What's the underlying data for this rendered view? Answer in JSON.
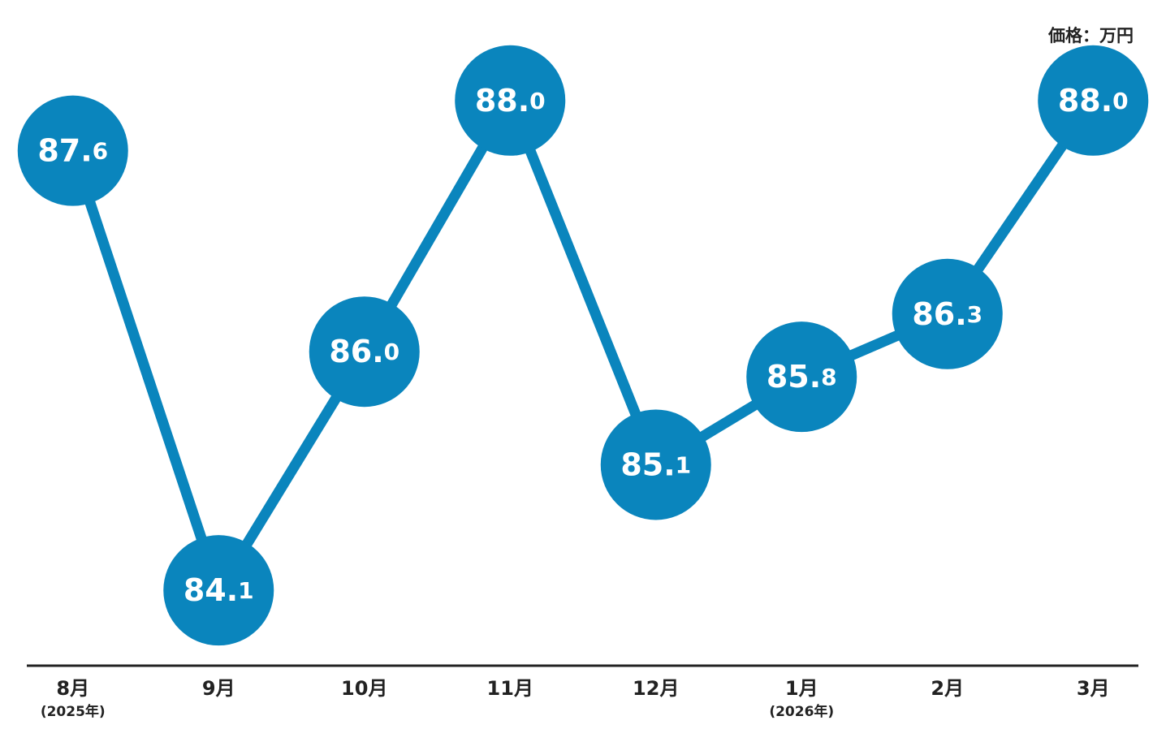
{
  "chart_data": {
    "type": "line",
    "unit_label": "価格：万円",
    "categories": [
      "8月",
      "9月",
      "10月",
      "11月",
      "12月",
      "1月",
      "2月",
      "3月"
    ],
    "category_notes": [
      "(2025年)",
      null,
      null,
      null,
      null,
      "(2026年)",
      null,
      null
    ],
    "values": [
      87.6,
      84.1,
      86.0,
      88.0,
      85.1,
      85.8,
      86.3,
      88.0
    ],
    "value_labels": [
      "87.6",
      "84.1",
      "86.0",
      "88.0",
      "85.1",
      "85.8",
      "86.3",
      "88.0"
    ],
    "color": "#0a85bd",
    "ylim": [
      83.5,
      88.8
    ]
  }
}
